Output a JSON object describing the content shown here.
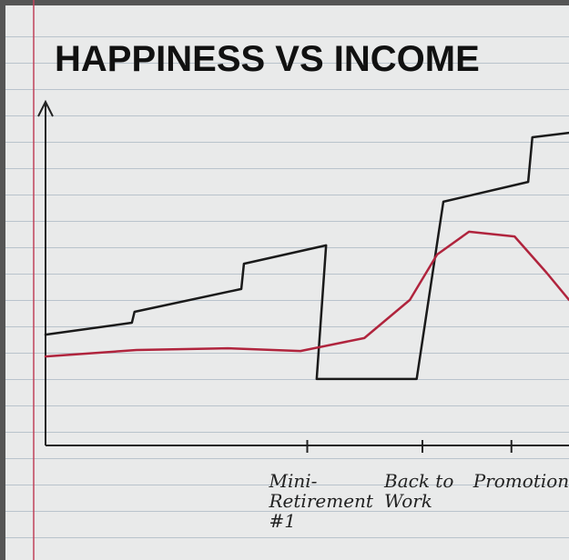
{
  "chart_data": {
    "type": "line",
    "title": "HAPPINESS VS INCOME",
    "xlim": [
      0,
      100
    ],
    "ylim": [
      0,
      100
    ],
    "xticks": [
      {
        "value": 50,
        "label": "Mini-Retirement #1"
      },
      {
        "value": 72,
        "label": "Back to Work"
      },
      {
        "value": 89,
        "label": "Promotion"
      }
    ],
    "series": [
      {
        "color": "#1a1a1a",
        "x": [
          0,
          16.5,
          17,
          37.4,
          37.9,
          53.6,
          51.8,
          70.9,
          76,
          92.2,
          93,
          100
        ],
        "values": [
          32.5,
          36,
          39.2,
          45.9,
          53.3,
          58.7,
          19.5,
          19.5,
          71.5,
          77.3,
          90.4,
          91.7
        ]
      },
      {
        "color": "#b0243d",
        "x": [
          0,
          17.4,
          34.8,
          48.7,
          60.9,
          69.6,
          74.8,
          80.9,
          89.6,
          95.7,
          100
        ],
        "values": [
          26.1,
          28,
          28.5,
          27.7,
          31.5,
          42.7,
          56,
          62.7,
          61.3,
          50.7,
          42.7
        ]
      }
    ]
  }
}
